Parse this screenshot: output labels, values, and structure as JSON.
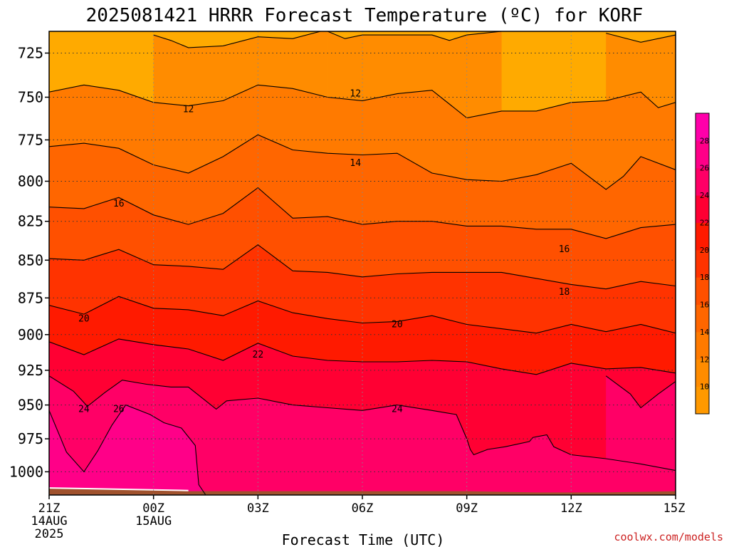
{
  "chart_data": {
    "type": "heatmap",
    "title": "2025081421 HRRR Forecast Temperature (ºC) for KORF",
    "xlabel": "Forecast Time (UTC)",
    "ylabel": "",
    "credit": "coolwx.com/models",
    "y_scale": "log pressure (inverted)",
    "y_ticks": [
      725,
      750,
      775,
      800,
      825,
      850,
      875,
      900,
      925,
      950,
      975,
      1000
    ],
    "y_tick_labels": [
      "725",
      "750",
      "775",
      "800",
      "825",
      "850",
      "875",
      "900",
      "925",
      "950",
      "975",
      "1000"
    ],
    "ylim": [
      1018,
      713
    ],
    "x_hours": [
      0,
      3,
      6,
      9,
      12,
      15,
      18
    ],
    "x_tick_labels": [
      [
        "21Z",
        "14AUG",
        "2025"
      ],
      [
        "00Z",
        "15AUG"
      ],
      [
        "03Z"
      ],
      [
        "06Z"
      ],
      [
        "09Z"
      ],
      [
        "12Z"
      ],
      [
        "15Z"
      ]
    ],
    "xlim": [
      0,
      18
    ],
    "grid": true,
    "colorbar": {
      "placement": "right",
      "levels": [
        8,
        10,
        12,
        14,
        16,
        18,
        20,
        22,
        24,
        26,
        28,
        30
      ],
      "tick_labels": [
        "10",
        "12",
        "14",
        "16",
        "18",
        "20",
        "22",
        "24",
        "26",
        "28"
      ],
      "colors": [
        "#FF9900",
        "#FF8C00",
        "#FF7A00",
        "#FF6600",
        "#FF5000",
        "#FF3300",
        "#FF1A00",
        "#FF0033",
        "#FF0066",
        "#FF0088",
        "#FF00AA"
      ]
    },
    "contours": [
      {
        "level": 10,
        "points": [
          [
            3.0,
            715
          ],
          [
            3.5,
            718
          ],
          [
            4.0,
            722
          ],
          [
            5.0,
            721
          ],
          [
            6.0,
            716
          ],
          [
            7.0,
            717
          ],
          [
            8.0,
            712
          ]
        ]
      },
      {
        "level": 10,
        "points": [
          [
            8.0,
            713
          ],
          [
            8.5,
            717
          ],
          [
            9.0,
            715
          ],
          [
            11.0,
            715
          ],
          [
            11.5,
            718
          ],
          [
            12.0,
            715
          ],
          [
            13.0,
            713
          ]
        ]
      },
      {
        "level": 10,
        "points": [
          [
            16.0,
            714
          ],
          [
            17.0,
            719
          ],
          [
            18.0,
            715
          ]
        ]
      },
      {
        "level": 12,
        "points": [
          [
            0.0,
            747
          ],
          [
            1.0,
            743
          ],
          [
            2.0,
            746
          ],
          [
            3.0,
            753
          ],
          [
            4.0,
            755
          ],
          [
            5.0,
            752
          ],
          [
            6.0,
            743
          ],
          [
            7.0,
            745
          ],
          [
            8.0,
            750
          ],
          [
            9.0,
            752
          ],
          [
            10.0,
            748
          ],
          [
            11.0,
            746
          ],
          [
            12.0,
            762
          ],
          [
            13.0,
            758
          ],
          [
            14.0,
            758
          ],
          [
            15.0,
            753
          ],
          [
            16.0,
            752
          ],
          [
            17.0,
            747
          ],
          [
            17.5,
            756
          ],
          [
            18.0,
            753
          ]
        ]
      },
      {
        "level": 14,
        "points": [
          [
            0.0,
            779
          ],
          [
            1.0,
            777
          ],
          [
            2.0,
            780
          ],
          [
            3.0,
            790
          ],
          [
            4.0,
            795
          ],
          [
            5.0,
            785
          ],
          [
            6.0,
            772
          ],
          [
            7.0,
            781
          ],
          [
            8.0,
            783
          ],
          [
            9.0,
            784
          ],
          [
            10.0,
            783
          ],
          [
            11.0,
            795
          ],
          [
            12.0,
            799
          ],
          [
            13.0,
            800
          ],
          [
            14.0,
            796
          ],
          [
            15.0,
            789
          ],
          [
            16.0,
            805
          ],
          [
            16.5,
            797
          ],
          [
            17.0,
            785
          ],
          [
            18.0,
            793
          ],
          [
            18.0,
            791
          ]
        ]
      },
      {
        "level": 16,
        "points": [
          [
            0.0,
            816
          ],
          [
            1.0,
            817
          ],
          [
            2.0,
            810
          ],
          [
            3.0,
            821
          ],
          [
            4.0,
            827
          ],
          [
            5.0,
            820
          ],
          [
            6.0,
            804
          ],
          [
            7.0,
            823
          ],
          [
            8.0,
            822
          ],
          [
            9.0,
            827
          ],
          [
            10.0,
            825
          ],
          [
            11.0,
            825
          ],
          [
            12.0,
            828
          ],
          [
            13.0,
            828
          ],
          [
            14.0,
            830
          ],
          [
            15.0,
            830
          ],
          [
            16.0,
            836
          ],
          [
            17.0,
            829
          ],
          [
            18.0,
            827
          ]
        ]
      },
      {
        "level": 18,
        "points": [
          [
            0.0,
            849
          ],
          [
            1.0,
            850
          ],
          [
            2.0,
            843
          ],
          [
            3.0,
            853
          ],
          [
            4.0,
            854
          ],
          [
            5.0,
            856
          ],
          [
            6.0,
            840
          ],
          [
            7.0,
            857
          ],
          [
            8.0,
            858
          ],
          [
            9.0,
            861
          ],
          [
            10.0,
            859
          ],
          [
            11.0,
            858
          ],
          [
            12.0,
            858
          ],
          [
            13.0,
            858
          ],
          [
            14.0,
            862
          ],
          [
            15.0,
            866
          ],
          [
            16.0,
            869
          ],
          [
            17.0,
            864
          ],
          [
            18.0,
            867
          ],
          [
            18.0,
            864
          ]
        ]
      },
      {
        "level": 20,
        "points": [
          [
            0.0,
            880
          ],
          [
            1.0,
            886
          ],
          [
            2.0,
            874
          ],
          [
            3.0,
            882
          ],
          [
            4.0,
            883
          ],
          [
            5.0,
            887
          ],
          [
            6.0,
            877
          ],
          [
            7.0,
            885
          ],
          [
            8.0,
            889
          ],
          [
            9.0,
            892
          ],
          [
            10.0,
            891
          ],
          [
            11.0,
            887
          ],
          [
            12.0,
            893
          ],
          [
            13.0,
            896
          ],
          [
            14.0,
            899
          ],
          [
            15.0,
            893
          ],
          [
            16.0,
            898
          ],
          [
            17.0,
            893
          ],
          [
            18.0,
            899
          ],
          [
            18.0,
            898
          ]
        ]
      },
      {
        "level": 22,
        "points": [
          [
            0.0,
            905
          ],
          [
            1.0,
            914
          ],
          [
            2.0,
            903
          ],
          [
            3.0,
            907
          ],
          [
            4.0,
            910
          ],
          [
            5.0,
            918
          ],
          [
            6.0,
            906
          ],
          [
            7.0,
            915
          ],
          [
            8.0,
            918
          ],
          [
            9.0,
            919
          ],
          [
            10.0,
            919
          ],
          [
            11.0,
            918
          ],
          [
            12.0,
            919
          ],
          [
            13.0,
            924
          ],
          [
            14.0,
            928
          ],
          [
            15.0,
            920
          ],
          [
            16.0,
            924
          ],
          [
            17.0,
            923
          ],
          [
            18.0,
            927
          ]
        ]
      },
      {
        "level": 24,
        "points": [
          [
            0.0,
            929
          ],
          [
            0.7,
            940
          ],
          [
            1.1,
            951
          ],
          [
            1.6,
            941
          ],
          [
            2.1,
            932
          ],
          [
            2.8,
            935
          ],
          [
            3.5,
            937
          ],
          [
            4.0,
            937
          ],
          [
            4.8,
            953
          ],
          [
            5.1,
            947
          ],
          [
            6.0,
            945
          ],
          [
            7.0,
            950
          ],
          [
            8.0,
            952
          ],
          [
            9.0,
            954
          ],
          [
            10.0,
            950
          ],
          [
            11.0,
            954
          ],
          [
            11.7,
            957
          ],
          [
            12.0,
            975
          ],
          [
            12.1,
            983
          ],
          [
            12.2,
            987
          ],
          [
            12.6,
            983
          ],
          [
            13.1,
            981
          ],
          [
            13.8,
            977
          ],
          [
            13.9,
            974
          ],
          [
            14.3,
            972
          ],
          [
            14.5,
            981
          ],
          [
            15.0,
            987
          ],
          [
            16.0,
            990
          ],
          [
            17.0,
            994
          ],
          [
            18.0,
            999
          ]
        ]
      },
      {
        "level": 24,
        "points": [
          [
            16.0,
            929
          ],
          [
            16.7,
            942
          ],
          [
            17.0,
            952
          ],
          [
            17.5,
            942
          ],
          [
            18.0,
            933
          ]
        ]
      },
      {
        "level": 26,
        "points": [
          [
            0.0,
            954
          ],
          [
            0.5,
            985
          ],
          [
            1.0,
            1000
          ],
          [
            1.4,
            984
          ],
          [
            1.8,
            965
          ],
          [
            2.2,
            950
          ],
          [
            2.9,
            957
          ],
          [
            3.3,
            963
          ],
          [
            3.8,
            967
          ],
          [
            4.2,
            980
          ],
          [
            4.3,
            1010
          ],
          [
            4.5,
            1018
          ]
        ]
      }
    ],
    "contour_labels": [
      {
        "text": "12",
        "x": 4.0,
        "y": 757
      },
      {
        "text": "12",
        "x": 8.8,
        "y": 748
      },
      {
        "text": "14",
        "x": 8.8,
        "y": 789
      },
      {
        "text": "16",
        "x": 2.0,
        "y": 814
      },
      {
        "text": "16",
        "x": 14.8,
        "y": 843
      },
      {
        "text": "18",
        "x": 14.8,
        "y": 871
      },
      {
        "text": "20",
        "x": 1.0,
        "y": 889
      },
      {
        "text": "20",
        "x": 10.0,
        "y": 893
      },
      {
        "text": "22",
        "x": 6.0,
        "y": 914
      },
      {
        "text": "24",
        "x": 1.0,
        "y": 953
      },
      {
        "text": "24",
        "x": 10.0,
        "y": 953
      },
      {
        "text": "26",
        "x": 2.0,
        "y": 953
      }
    ],
    "ground_color": "#A0522D"
  }
}
